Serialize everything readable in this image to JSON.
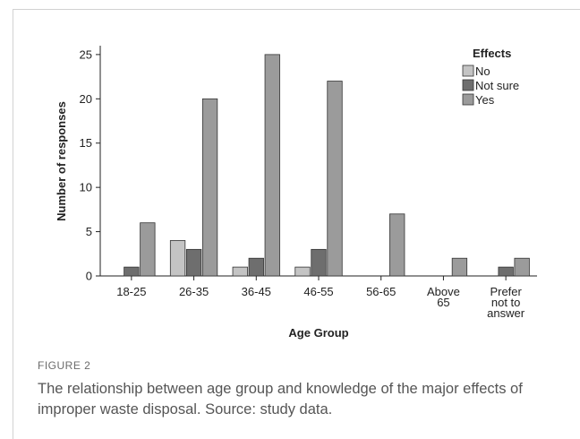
{
  "figure": {
    "label": "FIGURE 2",
    "caption": "The relationship between age group and knowledge of the major effects of improper waste disposal. Source: study data."
  },
  "chart_data": {
    "type": "bar",
    "categories": [
      [
        "18-25"
      ],
      [
        "26-35"
      ],
      [
        "36-45"
      ],
      [
        "46-55"
      ],
      [
        "56-65"
      ],
      [
        "Above",
        "65"
      ],
      [
        "Prefer",
        "not to",
        "answer"
      ]
    ],
    "series": [
      {
        "name": "No",
        "color": "#c4c4c4",
        "values": [
          null,
          4,
          1,
          1,
          null,
          null,
          null
        ]
      },
      {
        "name": "Not sure",
        "color": "#6e6e6e",
        "values": [
          1,
          3,
          2,
          3,
          null,
          null,
          1
        ]
      },
      {
        "name": "Yes",
        "color": "#9b9b9b",
        "values": [
          6,
          20,
          25,
          22,
          7,
          2,
          2
        ]
      }
    ],
    "title": "",
    "xlabel": "Age Group",
    "ylabel": "Number of responses",
    "ylim": [
      0,
      26
    ],
    "yticks": [
      0,
      5,
      10,
      15,
      20,
      25
    ],
    "legend": {
      "title": "Effects",
      "placement": "top-right"
    },
    "grid": false
  }
}
